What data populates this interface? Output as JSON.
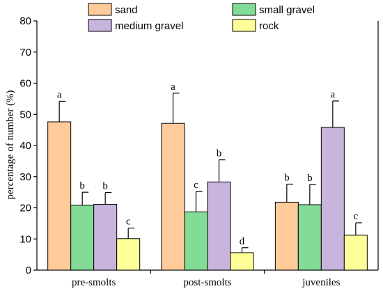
{
  "chart_data": {
    "type": "bar",
    "title": "",
    "xlabel": "",
    "ylabel": "percentage of number (%)",
    "ylim": [
      0,
      80
    ],
    "yticks": [
      0,
      10,
      20,
      30,
      40,
      50,
      60,
      70,
      80
    ],
    "categories": [
      "pre-smolts",
      "post-smolts",
      "juveniles"
    ],
    "legend_position": "top",
    "series": [
      {
        "name": "sand",
        "color": "#FFCB9A",
        "values": [
          47.6,
          47.1,
          21.8
        ],
        "errors": [
          6.6,
          9.7,
          5.8
        ],
        "labels": [
          "a",
          "a",
          "b"
        ]
      },
      {
        "name": "small gravel",
        "color": "#82DC96",
        "values": [
          20.8,
          18.7,
          21.0
        ],
        "errors": [
          4.2,
          6.5,
          6.5
        ],
        "labels": [
          "b",
          "c",
          "b"
        ]
      },
      {
        "name": "medium gravel",
        "color": "#C8B4DC",
        "values": [
          21.1,
          28.3,
          45.8
        ],
        "errors": [
          3.8,
          7.1,
          8.5
        ],
        "labels": [
          "b",
          "b",
          "a"
        ]
      },
      {
        "name": "rock",
        "color": "#FFFF9A",
        "values": [
          10.1,
          5.6,
          11.2
        ],
        "errors": [
          3.4,
          1.6,
          4.0
        ],
        "labels": [
          "c",
          "d",
          "c"
        ]
      }
    ]
  }
}
